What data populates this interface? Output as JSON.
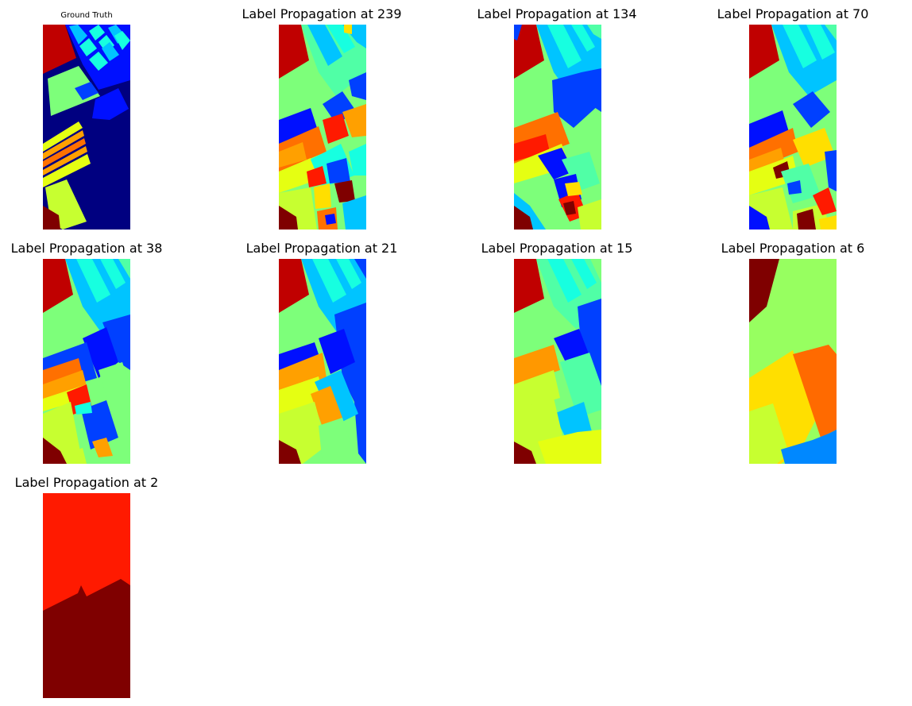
{
  "palette": {
    "darkred": "#7f0000",
    "red": "#ff1a00",
    "crimson": "#c00000",
    "orange": "#ff7000",
    "amber": "#ffa000",
    "yellow": "#ffdf00",
    "lime": "#e5ff12",
    "yellowgreen": "#c7ff30",
    "green": "#97ff60",
    "mint": "#7dff7a",
    "seafoam": "#50ffa6",
    "cyan": "#17ffe0",
    "sky": "#00c4ff",
    "azure": "#008cff",
    "blue": "#0040ff",
    "deepblue": "#0010ff",
    "navy": "#000080"
  },
  "panels": [
    {
      "id": "ground-truth",
      "title": "Ground Truth"
    },
    {
      "id": "lp-239",
      "title": "Label Propagation at 239"
    },
    {
      "id": "lp-134",
      "title": "Label Propagation at 134"
    },
    {
      "id": "lp-70",
      "title": "Label Propagation at 70"
    },
    {
      "id": "lp-38",
      "title": "Label Propagation at 38"
    },
    {
      "id": "lp-21",
      "title": "Label Propagation at 21"
    },
    {
      "id": "lp-15",
      "title": "Label Propagation at 15"
    },
    {
      "id": "lp-6",
      "title": "Label Propagation at 6"
    },
    {
      "id": "lp-2",
      "title": "Label Propagation at 2"
    }
  ]
}
